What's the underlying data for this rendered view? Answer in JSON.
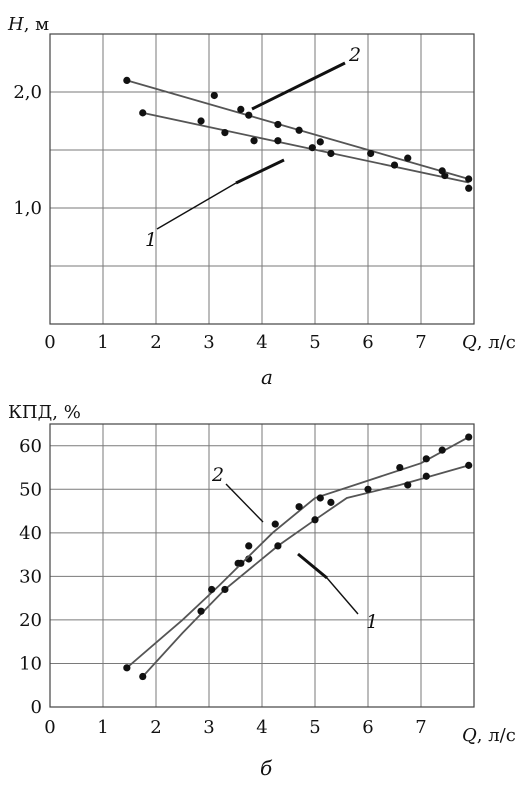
{
  "chart_data": [
    {
      "type": "scatter",
      "caption": "а",
      "ylabel_symbol": "H",
      "ylabel_unit": ", м",
      "xlabel_symbol": "Q",
      "xlabel_unit": ", л/с",
      "xlim": [
        0,
        8
      ],
      "ylim": [
        0,
        2.5
      ],
      "x_ticks": [
        0,
        1,
        2,
        3,
        4,
        5,
        6,
        7
      ],
      "y_ticks": [
        {
          "value": 1.0,
          "label": "1,0"
        },
        {
          "value": 2.0,
          "label": "2,0"
        }
      ],
      "series": [
        {
          "name": "1",
          "line": [
            [
              1.75,
              1.82
            ],
            [
              7.9,
              1.22
            ]
          ],
          "points": [
            [
              1.75,
              1.82
            ],
            [
              2.85,
              1.75
            ],
            [
              3.3,
              1.65
            ],
            [
              3.85,
              1.58
            ],
            [
              4.3,
              1.58
            ],
            [
              4.95,
              1.52
            ],
            [
              5.3,
              1.47
            ],
            [
              6.5,
              1.37
            ],
            [
              7.45,
              1.28
            ],
            [
              7.9,
              1.17
            ]
          ]
        },
        {
          "name": "2",
          "line": [
            [
              1.45,
              2.1
            ],
            [
              7.9,
              1.25
            ]
          ],
          "points": [
            [
              1.45,
              2.1
            ],
            [
              3.1,
              1.97
            ],
            [
              3.6,
              1.85
            ],
            [
              3.75,
              1.8
            ],
            [
              4.3,
              1.72
            ],
            [
              4.7,
              1.67
            ],
            [
              5.1,
              1.57
            ],
            [
              6.05,
              1.47
            ],
            [
              6.75,
              1.43
            ],
            [
              7.4,
              1.32
            ],
            [
              7.9,
              1.25
            ]
          ]
        }
      ]
    },
    {
      "type": "line",
      "caption": "б",
      "ylabel": "КПД, %",
      "xlabel_symbol": "Q",
      "xlabel_unit": ", л/с",
      "xlim": [
        0,
        8
      ],
      "ylim": [
        0,
        65
      ],
      "x_ticks": [
        0,
        1,
        2,
        3,
        4,
        5,
        6,
        7
      ],
      "y_ticks": [
        0,
        10,
        20,
        30,
        40,
        50,
        60
      ],
      "series": [
        {
          "name": "1",
          "line": [
            [
              1.75,
              7
            ],
            [
              2.5,
              17
            ],
            [
              3.3,
              27
            ],
            [
              4.3,
              37
            ],
            [
              5.0,
              43
            ],
            [
              5.6,
              48
            ],
            [
              6.6,
              51
            ],
            [
              7.9,
              55.5
            ]
          ],
          "points": [
            [
              1.75,
              7
            ],
            [
              2.85,
              22
            ],
            [
              3.3,
              27
            ],
            [
              3.55,
              33
            ],
            [
              3.75,
              34
            ],
            [
              4.3,
              37
            ],
            [
              5.0,
              43
            ],
            [
              5.3,
              47
            ],
            [
              6.0,
              50
            ],
            [
              6.75,
              51
            ],
            [
              7.1,
              53
            ],
            [
              7.9,
              55.5
            ]
          ]
        },
        {
          "name": "2",
          "line": [
            [
              1.45,
              9
            ],
            [
              2.5,
              20
            ],
            [
              3.2,
              28
            ],
            [
              4.2,
              40
            ],
            [
              5.0,
              48
            ],
            [
              6.0,
              52
            ],
            [
              7.0,
              56
            ],
            [
              7.9,
              62
            ]
          ],
          "points": [
            [
              1.45,
              9
            ],
            [
              3.05,
              27
            ],
            [
              3.6,
              33
            ],
            [
              3.75,
              37
            ],
            [
              4.25,
              42
            ],
            [
              4.7,
              46
            ],
            [
              5.1,
              48
            ],
            [
              6.6,
              55
            ],
            [
              7.1,
              57
            ],
            [
              7.4,
              59
            ],
            [
              7.9,
              62
            ]
          ]
        }
      ]
    }
  ]
}
